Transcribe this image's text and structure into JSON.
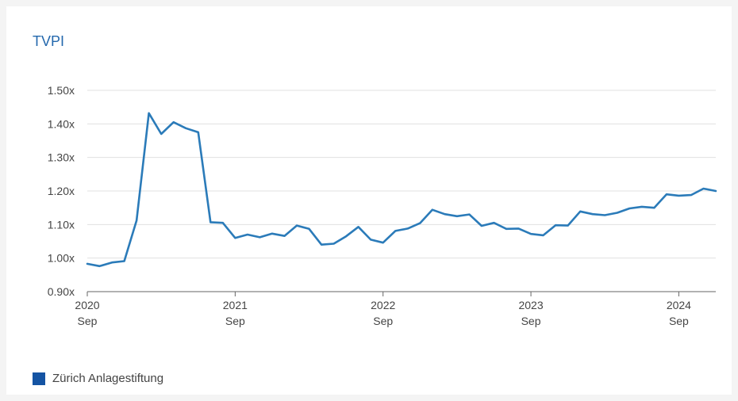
{
  "chart_data": {
    "type": "line",
    "title": "TVPI",
    "xlabel": "",
    "ylabel": "",
    "ylim": [
      0.9,
      1.5
    ],
    "yticks": [
      "0.90x",
      "1.00x",
      "1.10x",
      "1.20x",
      "1.30x",
      "1.40x",
      "1.50x"
    ],
    "ytick_values": [
      0.9,
      1.0,
      1.1,
      1.2,
      1.3,
      1.4,
      1.5
    ],
    "xlim": [
      "2020-09",
      "2024-12"
    ],
    "xticks": [
      {
        "year": "2020",
        "month": "Sep",
        "date": "2020-09"
      },
      {
        "year": "2021",
        "month": "Sep",
        "date": "2021-09"
      },
      {
        "year": "2022",
        "month": "Sep",
        "date": "2022-09"
      },
      {
        "year": "2023",
        "month": "Sep",
        "date": "2023-09"
      },
      {
        "year": "2024",
        "month": "Sep",
        "date": "2024-09"
      }
    ],
    "grid": true,
    "legend_position": "bottom-left",
    "series": [
      {
        "name": "Zürich Anlagestiftung",
        "color": "#2b7bb9",
        "x": [
          "2020-09",
          "2020-10",
          "2020-11",
          "2020-12",
          "2021-01",
          "2021-02",
          "2021-03",
          "2021-04",
          "2021-05",
          "2021-06",
          "2021-07",
          "2021-08",
          "2021-09",
          "2021-10",
          "2021-11",
          "2021-12",
          "2022-01",
          "2022-02",
          "2022-03",
          "2022-04",
          "2022-05",
          "2022-06",
          "2022-07",
          "2022-08",
          "2022-09",
          "2022-10",
          "2022-11",
          "2022-12",
          "2023-01",
          "2023-02",
          "2023-03",
          "2023-04",
          "2023-05",
          "2023-06",
          "2023-07",
          "2023-08",
          "2023-09",
          "2023-10",
          "2023-11",
          "2023-12",
          "2024-01",
          "2024-02",
          "2024-03",
          "2024-04",
          "2024-05",
          "2024-06",
          "2024-07",
          "2024-08",
          "2024-09",
          "2024-10",
          "2024-11",
          "2024-12"
        ],
        "values": [
          0.983,
          0.976,
          0.987,
          0.991,
          1.112,
          1.432,
          1.37,
          1.405,
          1.387,
          1.375,
          1.107,
          1.105,
          1.06,
          1.07,
          1.062,
          1.073,
          1.066,
          1.097,
          1.087,
          1.04,
          1.043,
          1.065,
          1.093,
          1.055,
          1.046,
          1.081,
          1.088,
          1.104,
          1.144,
          1.131,
          1.125,
          1.13,
          1.096,
          1.105,
          1.087,
          1.088,
          1.072,
          1.068,
          1.098,
          1.097,
          1.139,
          1.131,
          1.128,
          1.135,
          1.148,
          1.153,
          1.15,
          1.19,
          1.186,
          1.188,
          1.207,
          1.2
        ]
      }
    ],
    "colors": {
      "line": "#2b7bb9",
      "legend_swatch": "#1554a3",
      "title": "#2468ad",
      "grid": "#e0e0e0",
      "axis": "#666666"
    }
  }
}
